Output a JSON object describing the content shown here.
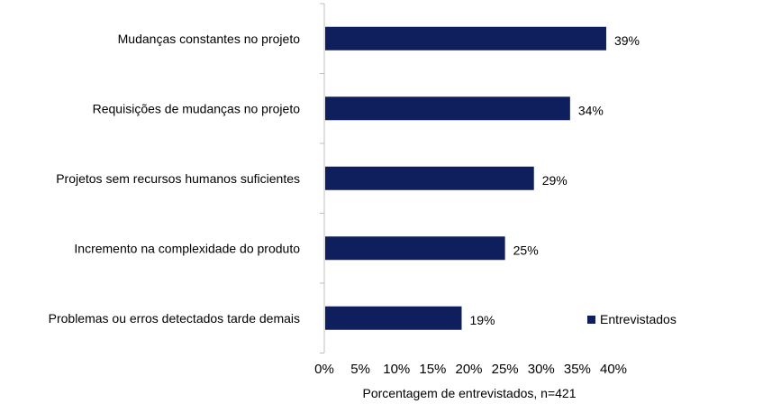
{
  "colors": {
    "bar": "#0f1f5e",
    "axis": "#bfbfbf",
    "text": "#000000"
  },
  "chart_data": {
    "type": "bar",
    "orientation": "horizontal",
    "categories": [
      "Mudanças constantes no projeto",
      "Requisições de mudanças no projeto",
      "Projetos sem recursos humanos suficientes",
      "Incremento na complexidade do produto",
      "Problemas ou erros detectados tarde demais"
    ],
    "series": [
      {
        "name": "Entrevistados",
        "values": [
          39,
          34,
          29,
          25,
          19
        ]
      }
    ],
    "data_labels": [
      "39%",
      "34%",
      "29%",
      "25%",
      "19%"
    ],
    "xlabel": "Porcentagem de entrevistados, n=421",
    "xlim": [
      0,
      40
    ],
    "xticks": [
      0,
      5,
      10,
      15,
      20,
      25,
      30,
      35,
      40
    ],
    "xtick_labels": [
      "0%",
      "5%",
      "10%",
      "15%",
      "20%",
      "25%",
      "30%",
      "35%",
      "40%"
    ],
    "legend": {
      "position": "bottom-right",
      "label": "Entrevistados"
    },
    "grid": false
  }
}
